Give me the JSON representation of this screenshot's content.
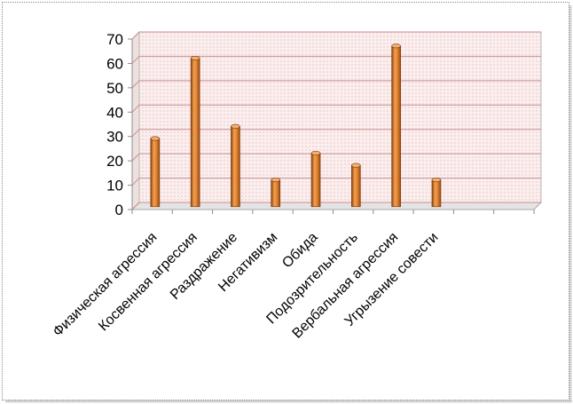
{
  "chart_data": {
    "type": "bar",
    "title": "",
    "xlabel": "",
    "ylabel": "",
    "categories": [
      "Физическая агрессия",
      "Косвенная агрессия",
      "Раздражение",
      "Негативизм",
      "Обида",
      "Подозрительность",
      "Вербальная агрессия",
      "Угрызение совести"
    ],
    "values": [
      28,
      61,
      33,
      11,
      22,
      17,
      66,
      11
    ],
    "ylim": [
      0,
      70
    ],
    "yticks": [
      "0",
      "10",
      "20",
      "30",
      "40",
      "50",
      "60",
      "70"
    ],
    "grid": true,
    "legend": "none",
    "bar_color": "#d9782a",
    "wall_color": "#f7e3e3",
    "gridline_color": "#c89090"
  }
}
